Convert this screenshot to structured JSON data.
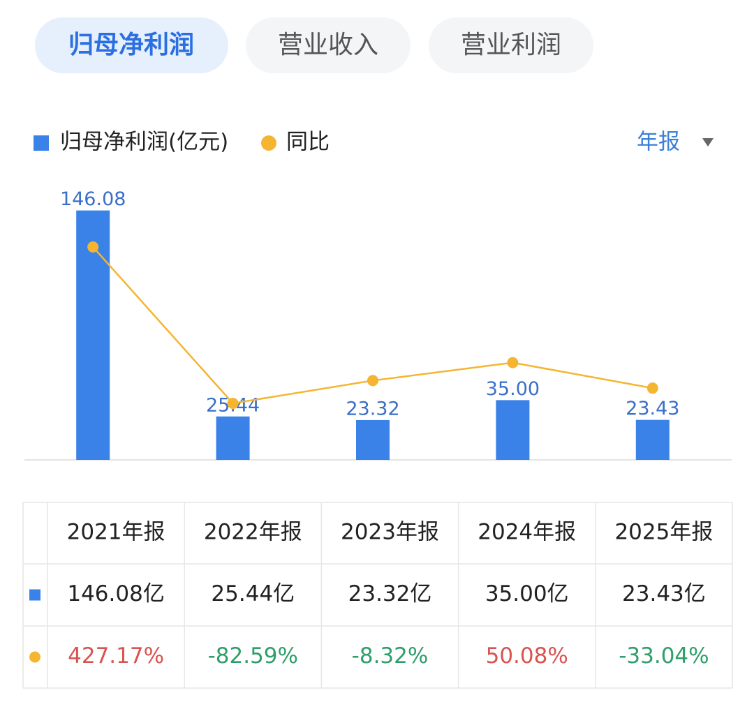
{
  "tabs": [
    "归母净利润",
    "营业收入",
    "营业利润"
  ],
  "period_selector": "年报",
  "chart_data": {
    "type": "bar_line",
    "categories": [
      "2021年报",
      "2022年报",
      "2023年报",
      "2024年报",
      "2025年报"
    ],
    "series": [
      {
        "name": "归母净利润(亿元)",
        "type": "bar",
        "color": "#3b82e8",
        "values": [
          146.08,
          25.44,
          23.32,
          35.0,
          23.43
        ],
        "value_labels": [
          "146.08",
          "25.44",
          "23.32",
          "35.00",
          "23.43"
        ]
      },
      {
        "name": "同比",
        "type": "line",
        "axis": "y2",
        "color": "#f5b531",
        "values": [
          427.17,
          -82.59,
          -8.32,
          50.08,
          -33.04
        ]
      }
    ],
    "ylim": [
      0,
      150
    ],
    "y2lim": [
      -267,
      568
    ],
    "up_color": "#d9534f",
    "down_color": "#2e9e6b"
  },
  "table": {
    "rows": [
      [
        "146.08亿",
        "25.44亿",
        "23.32亿",
        "35.00亿",
        "23.43亿"
      ],
      [
        "427.17%",
        "-82.59%",
        "-8.32%",
        "50.08%",
        "-33.04%"
      ]
    ]
  }
}
